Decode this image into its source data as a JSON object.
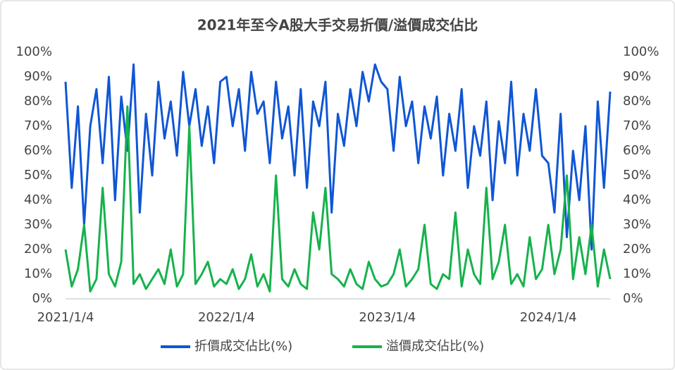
{
  "chart_data": {
    "type": "line",
    "title": "2021年至今A股大手交易折價/溢價成交佔比",
    "categories": [
      "2021/1/4",
      null,
      null,
      null,
      null,
      null,
      null,
      null,
      null,
      null,
      null,
      null,
      null,
      null,
      null,
      null,
      null,
      null,
      null,
      null,
      null,
      null,
      null,
      null,
      null,
      null,
      "2022/1/4",
      null,
      null,
      null,
      null,
      null,
      null,
      null,
      null,
      null,
      null,
      null,
      null,
      null,
      null,
      null,
      null,
      null,
      null,
      null,
      null,
      null,
      null,
      null,
      null,
      null,
      "2023/1/4",
      null,
      null,
      null,
      null,
      null,
      null,
      null,
      null,
      null,
      null,
      null,
      null,
      null,
      null,
      null,
      null,
      null,
      null,
      null,
      null,
      null,
      null,
      null,
      null,
      null,
      "2024/1/4",
      null,
      null,
      null,
      null,
      null,
      null,
      null,
      null,
      null,
      null
    ],
    "series": [
      {
        "name": "折價成交佔比(%)",
        "color": "#0f56d6",
        "values": [
          88,
          45,
          78,
          30,
          70,
          85,
          55,
          90,
          40,
          82,
          60,
          95,
          35,
          75,
          50,
          88,
          65,
          80,
          58,
          92,
          70,
          85,
          62,
          78,
          55,
          88,
          90,
          70,
          85,
          60,
          92,
          75,
          80,
          55,
          88,
          65,
          78,
          50,
          85,
          45,
          80,
          70,
          88,
          35,
          75,
          62,
          85,
          70,
          92,
          80,
          95,
          88,
          85,
          60,
          90,
          70,
          80,
          55,
          78,
          65,
          82,
          50,
          75,
          60,
          85,
          45,
          70,
          58,
          80,
          40,
          72,
          55,
          88,
          50,
          75,
          60,
          85,
          58,
          55,
          35,
          75,
          25,
          60,
          40,
          70,
          20,
          80,
          45,
          84
        ]
      },
      {
        "name": "溢價成交佔比(%)",
        "color": "#16b24c",
        "values": [
          20,
          5,
          12,
          30,
          3,
          8,
          45,
          10,
          5,
          15,
          78,
          6,
          10,
          4,
          8,
          12,
          6,
          20,
          5,
          10,
          70,
          6,
          10,
          15,
          5,
          8,
          6,
          12,
          4,
          8,
          18,
          5,
          10,
          3,
          50,
          8,
          5,
          12,
          6,
          4,
          35,
          20,
          45,
          10,
          8,
          5,
          12,
          6,
          4,
          15,
          8,
          5,
          6,
          10,
          20,
          5,
          8,
          12,
          30,
          6,
          4,
          10,
          8,
          35,
          5,
          20,
          10,
          6,
          45,
          8,
          15,
          30,
          6,
          10,
          5,
          25,
          8,
          12,
          30,
          10,
          20,
          50,
          8,
          25,
          10,
          30,
          5,
          20,
          8
        ]
      }
    ],
    "ylim": [
      0,
      100
    ],
    "yticks": [
      {
        "value": 0,
        "label": "0%"
      },
      {
        "value": 10,
        "label": "10%"
      },
      {
        "value": 20,
        "label": "20%"
      },
      {
        "value": 30,
        "label": "30%"
      },
      {
        "value": 40,
        "label": "40%"
      },
      {
        "value": 50,
        "label": "50%"
      },
      {
        "value": 60,
        "label": "60%"
      },
      {
        "value": 70,
        "label": "70%"
      },
      {
        "value": 80,
        "label": "80%"
      },
      {
        "value": 90,
        "label": "90%"
      },
      {
        "value": 100,
        "label": "100%"
      }
    ],
    "grid": false,
    "legend": "bottom"
  }
}
